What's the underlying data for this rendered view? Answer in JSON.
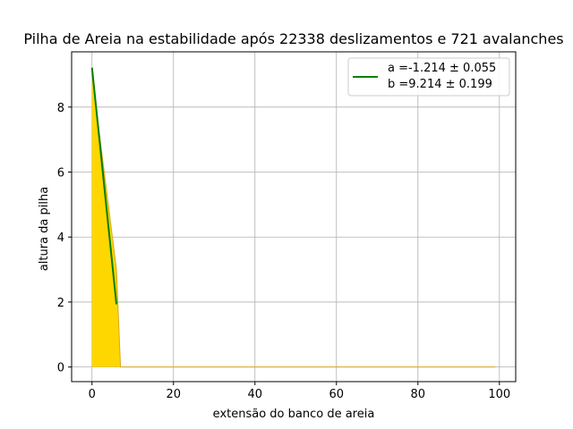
{
  "chart_data": {
    "type": "area",
    "title": "Pilha de Areia na estabilidade após 22338 deslizamentos e 721 avalanches",
    "xlabel": "extensão do banco de areia",
    "ylabel": "altura da pilha",
    "xlim": [
      -5,
      104
    ],
    "ylim": [
      -0.45,
      9.7
    ],
    "x_ticks": [
      0,
      20,
      40,
      60,
      80,
      100
    ],
    "y_ticks": [
      0,
      2,
      4,
      6,
      8
    ],
    "grid": true,
    "legend_position": "top-right",
    "series": [
      {
        "kind": "area",
        "color": "#FFD700",
        "edge_color": "#DAA520",
        "x": [
          0,
          1,
          2,
          3,
          4,
          5,
          6,
          7,
          99
        ],
        "y": [
          9,
          8,
          7,
          6,
          5,
          4,
          3,
          0,
          0
        ]
      },
      {
        "kind": "line",
        "color": "#008000",
        "x": [
          0,
          6
        ],
        "y": [
          9.214,
          1.93
        ]
      }
    ],
    "legend": [
      {
        "line1": "a =-1.214 ± 0.055",
        "line2": "b =9.214 ± 0.199",
        "color": "#008000"
      }
    ]
  }
}
